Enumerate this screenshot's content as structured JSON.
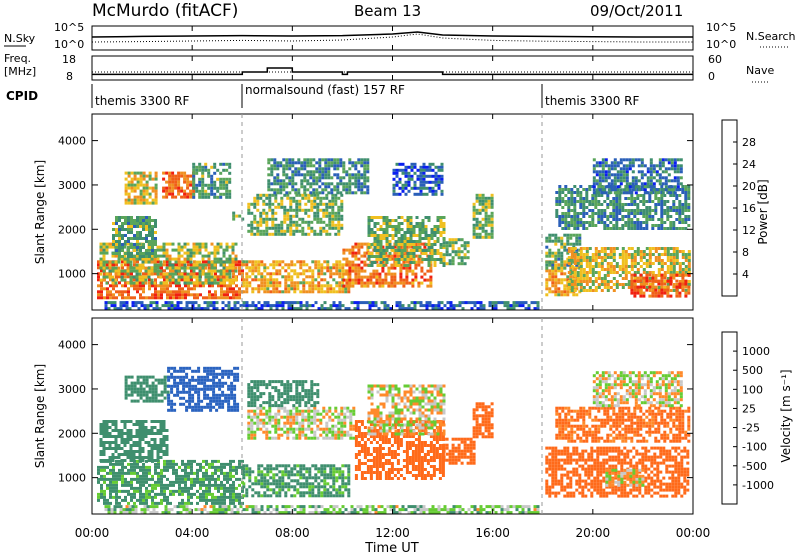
{
  "header": {
    "station": "McMurdo (fitACF)",
    "beam": "Beam 13",
    "date": "09/Oct/2011"
  },
  "panels": {
    "sky": {
      "left_label": "N.Sky",
      "right_label": "N.Search",
      "ticks_left": [
        "10^5",
        "10^0"
      ],
      "ticks_right": [
        "10^5",
        "10^0"
      ]
    },
    "freq": {
      "left_label_1": "Freq.",
      "left_label_2": "[MHz]",
      "right_label": "Nave",
      "ticks_left": [
        "18",
        "8"
      ],
      "ticks_right": [
        "60",
        "0"
      ]
    },
    "cpid": {
      "label": "CPID",
      "segments": [
        {
          "name": "themis 3300 RF",
          "start_h": 0,
          "end_h": 6
        },
        {
          "name": "normalsound (fast) 157 RF",
          "start_h": 6,
          "end_h": 18
        },
        {
          "name": "themis 3300 RF",
          "start_h": 18,
          "end_h": 24
        }
      ]
    }
  },
  "axes": {
    "ylabel": "Slant Range [km]",
    "xlabel": "Time UT",
    "y_ticks": [
      "1000",
      "2000",
      "3000",
      "4000"
    ],
    "x_ticks": [
      "00:00",
      "04:00",
      "08:00",
      "12:00",
      "16:00",
      "20:00",
      "00:00"
    ]
  },
  "colorbars": {
    "power": {
      "title": "Power [dB]",
      "ticks": [
        "28",
        "24",
        "20",
        "16",
        "12",
        "8",
        "4"
      ],
      "colors": [
        "#0a1ff0",
        "#2a5fb8",
        "#3f8f6e",
        "#5aa55a",
        "#f0c020",
        "#f09020",
        "#f06018",
        "#f02010"
      ]
    },
    "velocity": {
      "title": "Velocity [m s⁻¹]",
      "ticks": [
        "1000",
        "500",
        "100",
        "25",
        "-25",
        "-100",
        "-500",
        "-1000"
      ],
      "colors": [
        "#1a3a9a",
        "#2a63c0",
        "#3f8f6e",
        "#66cc33",
        "#c8c8c8",
        "#ff8a2a",
        "#ff6a1a",
        "#ff3a10",
        "#ee1010"
      ]
    }
  },
  "chart_data": [
    {
      "type": "line",
      "title": "N.Sky / N.Search",
      "x_unit": "hours UT",
      "series": [
        {
          "name": "N.Sky",
          "style": "solid",
          "x": [
            0,
            2,
            4,
            6,
            8,
            10,
            12,
            13,
            14,
            16,
            18,
            20,
            22,
            24
          ],
          "y_level": [
            0.55,
            0.58,
            0.6,
            0.62,
            0.6,
            0.62,
            0.7,
            0.8,
            0.65,
            0.6,
            0.58,
            0.56,
            0.55,
            0.55
          ]
        },
        {
          "name": "N.Search",
          "style": "dotted",
          "x": [
            0,
            2,
            4,
            6,
            8,
            10,
            12,
            13,
            14,
            16,
            18,
            20,
            22,
            24
          ],
          "y_level": [
            0.3,
            0.32,
            0.35,
            0.38,
            0.35,
            0.4,
            0.55,
            0.7,
            0.5,
            0.38,
            0.34,
            0.32,
            0.3,
            0.3
          ]
        }
      ]
    },
    {
      "type": "line",
      "title": "Freq / Nave",
      "x_unit": "hours UT",
      "series": [
        {
          "name": "Freq",
          "unit": "MHz",
          "x": [
            0,
            6,
            6,
            7,
            7,
            8,
            8,
            10,
            10,
            10.2,
            10.2,
            14,
            14,
            24
          ],
          "y": [
            9.8,
            9.8,
            11,
            11,
            13,
            13,
            11,
            11,
            9.8,
            9.8,
            11,
            11,
            9.8,
            9.8
          ]
        },
        {
          "name": "Nave",
          "style": "dotted",
          "x": [
            0,
            24
          ],
          "y": [
            18,
            18
          ]
        }
      ]
    },
    {
      "type": "heatmap",
      "title": "Power",
      "x_range_h": [
        0,
        24
      ],
      "y_range_km": [
        180,
        4600
      ],
      "regions": [
        {
          "x": [
            0.2,
            6.0
          ],
          "y": [
            450,
            1300
          ],
          "v": 26
        },
        {
          "x": [
            0.3,
            5.8
          ],
          "y": [
            800,
            1700
          ],
          "v": 16
        },
        {
          "x": [
            0.8,
            2.5
          ],
          "y": [
            1400,
            2300
          ],
          "v": 12
        },
        {
          "x": [
            1.3,
            2.6
          ],
          "y": [
            2600,
            3300
          ],
          "v": 18
        },
        {
          "x": [
            2.8,
            4.0
          ],
          "y": [
            2700,
            3300
          ],
          "v": 26
        },
        {
          "x": [
            4.0,
            5.5
          ],
          "y": [
            2700,
            3500
          ],
          "v": 12
        },
        {
          "x": [
            5.6,
            6.0
          ],
          "y": [
            2200,
            2400
          ],
          "v": 14
        },
        {
          "x": [
            6.0,
            10.2
          ],
          "y": [
            600,
            1300
          ],
          "v": 20
        },
        {
          "x": [
            6.2,
            10.0
          ],
          "y": [
            1900,
            2800
          ],
          "v": 14
        },
        {
          "x": [
            7.0,
            11.0
          ],
          "y": [
            2800,
            3600
          ],
          "v": 10
        },
        {
          "x": [
            10.0,
            13.5
          ],
          "y": [
            700,
            1700
          ],
          "v": 24
        },
        {
          "x": [
            11.0,
            14.0
          ],
          "y": [
            1200,
            2300
          ],
          "v": 14
        },
        {
          "x": [
            12.0,
            14.0
          ],
          "y": [
            2800,
            3500
          ],
          "v": 6
        },
        {
          "x": [
            14.0,
            15.0
          ],
          "y": [
            1200,
            1800
          ],
          "v": 14
        },
        {
          "x": [
            15.2,
            16.0
          ],
          "y": [
            1800,
            2800
          ],
          "v": 14
        },
        {
          "x": [
            18.1,
            19.5
          ],
          "y": [
            500,
            1300
          ],
          "v": 20
        },
        {
          "x": [
            18.1,
            19.5
          ],
          "y": [
            1100,
            1900
          ],
          "v": 12
        },
        {
          "x": [
            19.0,
            23.8
          ],
          "y": [
            600,
            1600
          ],
          "v": 18
        },
        {
          "x": [
            21.5,
            23.8
          ],
          "y": [
            500,
            1000
          ],
          "v": 26
        },
        {
          "x": [
            18.5,
            23.8
          ],
          "y": [
            2000,
            3000
          ],
          "v": 10
        },
        {
          "x": [
            20.0,
            23.5
          ],
          "y": [
            2800,
            3600
          ],
          "v": 8
        },
        {
          "x": [
            0.5,
            17.8
          ],
          "y": [
            180,
            380
          ],
          "v": 6
        }
      ]
    },
    {
      "type": "heatmap",
      "title": "Velocity",
      "x_range_h": [
        0,
        24
      ],
      "y_range_km": [
        180,
        4600
      ],
      "regions": [
        {
          "x": [
            0.2,
            6.0
          ],
          "y": [
            450,
            1400
          ],
          "v": 150
        },
        {
          "x": [
            0.3,
            3.0
          ],
          "y": [
            1400,
            2300
          ],
          "v": 200
        },
        {
          "x": [
            1.3,
            3.0
          ],
          "y": [
            2700,
            3300
          ],
          "v": 300
        },
        {
          "x": [
            3.0,
            5.8
          ],
          "y": [
            2500,
            3500
          ],
          "v": 600
        },
        {
          "x": [
            6.0,
            10.2
          ],
          "y": [
            600,
            1300
          ],
          "v": 150
        },
        {
          "x": [
            6.2,
            10.5
          ],
          "y": [
            1900,
            2600
          ],
          "v": 0
        },
        {
          "x": [
            6.2,
            9.0
          ],
          "y": [
            2600,
            3200
          ],
          "v": 400
        },
        {
          "x": [
            10.5,
            14.0
          ],
          "y": [
            1000,
            2300
          ],
          "v": -200
        },
        {
          "x": [
            11.0,
            14.0
          ],
          "y": [
            2000,
            3100
          ],
          "v": 0
        },
        {
          "x": [
            14.0,
            15.2
          ],
          "y": [
            1300,
            1900
          ],
          "v": -200
        },
        {
          "x": [
            15.2,
            16.0
          ],
          "y": [
            1900,
            2700
          ],
          "v": -300
        },
        {
          "x": [
            18.1,
            23.8
          ],
          "y": [
            600,
            1700
          ],
          "v": -200
        },
        {
          "x": [
            18.5,
            23.8
          ],
          "y": [
            1800,
            2600
          ],
          "v": -150
        },
        {
          "x": [
            20.0,
            23.5
          ],
          "y": [
            2600,
            3400
          ],
          "v": 0
        },
        {
          "x": [
            20.5,
            22.0
          ],
          "y": [
            800,
            1200
          ],
          "v": 0
        },
        {
          "x": [
            0.5,
            17.8
          ],
          "y": [
            180,
            380
          ],
          "v": 60
        }
      ]
    }
  ]
}
